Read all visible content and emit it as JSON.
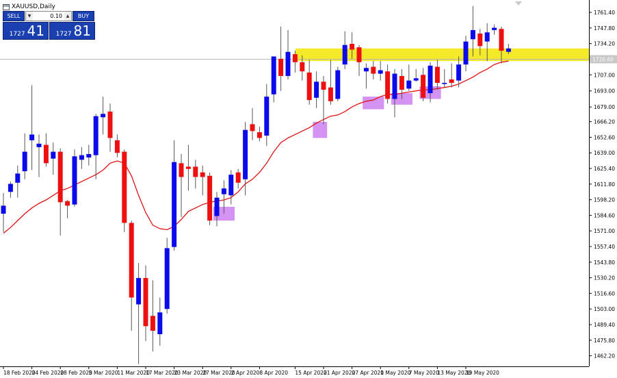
{
  "window": {
    "symbol_title": "XAUUSD,Daily"
  },
  "trade_panel": {
    "sell_label": "SELL",
    "buy_label": "BUY",
    "lot_value": "0.10",
    "sell_price_small": "1727",
    "sell_price_big": "41",
    "buy_price_small": "1727",
    "buy_price_big": "81"
  },
  "chart_data": {
    "type": "candlestick",
    "y_axis": {
      "range": [
        1453.0,
        1771.0
      ],
      "ticks": [
        "1761.40",
        "1747.80",
        "1734.20",
        "1720.60",
        "1707.00",
        "1693.00",
        "1679.00",
        "1666.20",
        "1652.60",
        "1639.00",
        "1625.40",
        "1611.80",
        "1598.20",
        "1584.60",
        "1571.00",
        "1557.40",
        "1543.80",
        "1530.20",
        "1516.60",
        "1503.00",
        "1489.40",
        "1475.80",
        "1462.20"
      ],
      "current_price_label": "1720.60"
    },
    "x_axis": {
      "tick_labels": [
        "18 Feb 2020",
        "24 Feb 2020",
        "28 Feb 2020",
        "5 Mar 2020",
        "11 Mar 2020",
        "17 Mar 2020",
        "23 Mar 2020",
        "27 Mar 2020",
        "2 Apr 2020",
        "8 Apr 2020",
        "15 Apr 2020",
        "21 Apr 2020",
        "27 Apr 2020",
        "1 May 2020",
        "7 May 2020",
        "13 May 2020",
        "19 May 2020"
      ],
      "tick_candle_index": [
        0,
        4,
        8,
        12,
        16,
        20,
        24,
        28,
        32,
        36,
        41,
        45,
        49,
        53,
        57,
        61,
        65
      ]
    },
    "candles": [
      [
        1586,
        1593,
        1570,
        1604
      ],
      [
        1605,
        1612,
        1600,
        1614
      ],
      [
        1613,
        1621,
        1600,
        1628
      ],
      [
        1623,
        1640,
        1616,
        1656
      ],
      [
        1650,
        1655,
        1624,
        1698
      ],
      [
        1644,
        1647,
        1618,
        1655
      ],
      [
        1646,
        1630,
        1627,
        1656
      ],
      [
        1634,
        1640,
        1620,
        1648
      ],
      [
        1640,
        1596,
        1567,
        1643
      ],
      [
        1597,
        1593,
        1582,
        1598
      ],
      [
        1594,
        1636,
        1592,
        1642
      ],
      [
        1633,
        1637,
        1625,
        1644
      ],
      [
        1635,
        1638,
        1628,
        1646
      ],
      [
        1637,
        1671,
        1616,
        1673
      ],
      [
        1670,
        1673,
        1655,
        1688
      ],
      [
        1675,
        1652,
        1640,
        1682
      ],
      [
        1650,
        1639,
        1635,
        1655
      ],
      [
        1640,
        1578,
        1570,
        1642
      ],
      [
        1578,
        1513,
        1484,
        1580
      ],
      [
        1507,
        1530,
        1455,
        1543
      ],
      [
        1530,
        1488,
        1475,
        1541
      ],
      [
        1497,
        1484,
        1466,
        1528
      ],
      [
        1481,
        1500,
        1471,
        1513
      ],
      [
        1503,
        1556,
        1499,
        1565
      ],
      [
        1557,
        1631,
        1554,
        1650
      ],
      [
        1630,
        1618,
        1583,
        1638
      ],
      [
        1627,
        1625,
        1606,
        1646
      ],
      [
        1627,
        1618,
        1608,
        1633
      ],
      [
        1622,
        1618,
        1602,
        1628
      ],
      [
        1619,
        1580,
        1576,
        1622
      ],
      [
        1584,
        1600,
        1575,
        1605
      ],
      [
        1603,
        1608,
        1586,
        1615
      ],
      [
        1602,
        1620,
        1594,
        1624
      ],
      [
        1622,
        1613,
        1608,
        1625
      ],
      [
        1616,
        1659,
        1602,
        1666
      ],
      [
        1664,
        1658,
        1650,
        1678
      ],
      [
        1657,
        1652,
        1649,
        1662
      ],
      [
        1654,
        1688,
        1645,
        1699
      ],
      [
        1690,
        1723,
        1683,
        1723
      ],
      [
        1721,
        1706,
        1693,
        1749
      ],
      [
        1706,
        1727,
        1703,
        1746
      ],
      [
        1725,
        1718,
        1709,
        1728
      ],
      [
        1718,
        1710,
        1702,
        1724
      ],
      [
        1709,
        1685,
        1681,
        1720
      ],
      [
        1687,
        1701,
        1678,
        1710
      ],
      [
        1701,
        1694,
        1664,
        1706
      ],
      [
        1696,
        1684,
        1681,
        1720
      ],
      [
        1686,
        1711,
        1684,
        1714
      ],
      [
        1716,
        1733,
        1712,
        1745
      ],
      [
        1734,
        1729,
        1721,
        1744
      ],
      [
        1731,
        1718,
        1706,
        1733
      ],
      [
        1710,
        1713,
        1695,
        1717
      ],
      [
        1714,
        1708,
        1703,
        1719
      ],
      [
        1708,
        1711,
        1702,
        1719
      ],
      [
        1710,
        1686,
        1682,
        1716
      ],
      [
        1686,
        1708,
        1670,
        1712
      ],
      [
        1706,
        1694,
        1686,
        1712
      ],
      [
        1695,
        1702,
        1693,
        1716
      ],
      [
        1702,
        1704,
        1701,
        1712
      ],
      [
        1707,
        1687,
        1684,
        1713
      ],
      [
        1691,
        1715,
        1683,
        1718
      ],
      [
        1714,
        1700,
        1694,
        1720
      ],
      [
        1699,
        1700,
        1696,
        1712
      ],
      [
        1703,
        1700,
        1696,
        1717
      ],
      [
        1702,
        1716,
        1696,
        1723
      ],
      [
        1716,
        1736,
        1710,
        1741
      ],
      [
        1738,
        1746,
        1723,
        1767
      ],
      [
        1743,
        1732,
        1724,
        1747
      ],
      [
        1736,
        1744,
        1719,
        1752
      ],
      [
        1746,
        1748,
        1742,
        1751
      ],
      [
        1747,
        1728,
        1717,
        1749
      ],
      [
        1727,
        1730,
        1725,
        1734
      ]
    ],
    "moving_average": {
      "color": "#e01010",
      "values": [
        1569,
        1574,
        1580,
        1586,
        1591,
        1595,
        1598,
        1602,
        1606,
        1608,
        1611,
        1614,
        1617,
        1620,
        1624,
        1630,
        1632,
        1630,
        1619,
        1602,
        1587,
        1576,
        1573,
        1572,
        1575,
        1581,
        1588,
        1591,
        1594,
        1596,
        1597,
        1598,
        1600,
        1605,
        1612,
        1616,
        1622,
        1630,
        1640,
        1648,
        1652,
        1655,
        1658,
        1661,
        1665,
        1668,
        1671,
        1672,
        1675,
        1679,
        1682,
        1684,
        1685,
        1688,
        1690,
        1690,
        1691,
        1692,
        1693,
        1694,
        1694,
        1695,
        1696,
        1697,
        1699,
        1702,
        1705,
        1709,
        1712,
        1716,
        1718,
        1719
      ]
    },
    "resistance_zone": {
      "low": 1719,
      "high": 1730,
      "color": "#f5ea2a"
    },
    "support_boxes": [
      {
        "from_index": 29.5,
        "to_index": 32.5,
        "low": 1580,
        "high": 1592,
        "color": "#cf86f2"
      },
      {
        "from_index": 43.5,
        "to_index": 45.5,
        "low": 1652,
        "high": 1666,
        "color": "#cf86f2"
      },
      {
        "from_index": 50.5,
        "to_index": 53.5,
        "low": 1677,
        "high": 1688,
        "color": "#cf86f2"
      },
      {
        "from_index": 54.5,
        "to_index": 57.5,
        "low": 1681,
        "high": 1691,
        "color": "#cf86f2"
      },
      {
        "from_index": 58.5,
        "to_index": 61.5,
        "low": 1686,
        "high": 1697,
        "color": "#cf86f2"
      }
    ],
    "colors": {
      "bull": "#0a0aeb",
      "bear": "#ee1010",
      "wick": "#555555",
      "grid_axis": "#000000"
    }
  }
}
